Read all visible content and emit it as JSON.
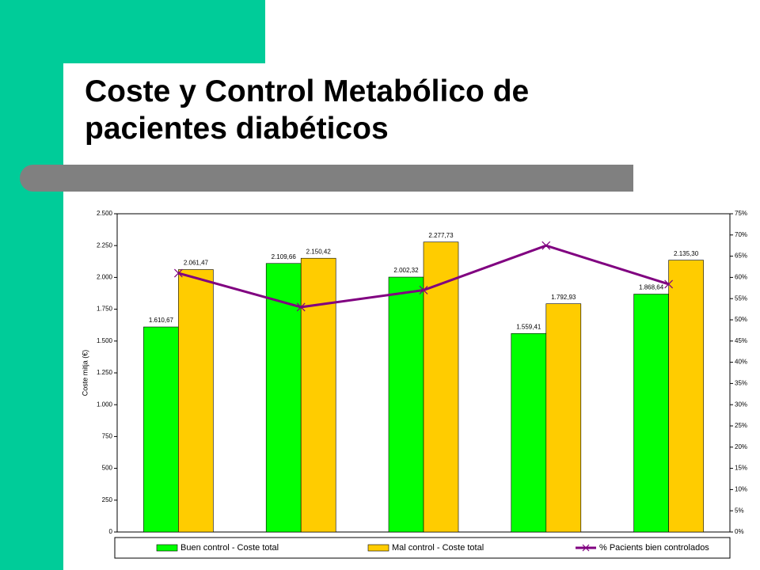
{
  "title": "Coste y Control Metabólico de pacientes diabéticos",
  "chart_data": {
    "type": "bar",
    "ylabel": "Coste mitja (€)",
    "categories": [
      null,
      null,
      null,
      null,
      null
    ],
    "series": [
      {
        "name": "Buen control - Coste total",
        "color": "#00ff00",
        "values": [
          1610.67,
          2109.66,
          2002.32,
          1559.41,
          1868.64
        ],
        "value_labels": [
          "1.610,67",
          "2.109,66",
          "2.002,32",
          "1.559,41",
          "1.868,64"
        ]
      },
      {
        "name": "Mal control - Coste total",
        "color": "#ffcc00",
        "values": [
          2061.47,
          2150.42,
          2277.73,
          1792.93,
          2135.3
        ],
        "value_labels": [
          "2.061,47",
          "2.150,42",
          "2.277,73",
          "1.792,93",
          "2.135,30"
        ]
      },
      {
        "name": "% Pacients bien controlados",
        "color": "#800080",
        "type": "line",
        "axis": "y2",
        "values": [
          61,
          53,
          57,
          67.5,
          58.4
        ]
      }
    ],
    "ylim": [
      0,
      2500
    ],
    "yticks": [
      0,
      250,
      500,
      750,
      {
        "value": 1000,
        "label": "1.000"
      },
      {
        "value": 1250,
        "label": "1.250"
      },
      {
        "value": 1500,
        "label": "1.500"
      },
      {
        "value": 1750,
        "label": "1.750"
      },
      {
        "value": 2000,
        "label": "2.000"
      },
      {
        "value": 2250,
        "label": "2.250"
      },
      {
        "value": 2500,
        "label": "2.500"
      }
    ],
    "y2lim": [
      0,
      75
    ],
    "y2ticks": [
      {
        "value": 0,
        "label": "0%"
      },
      {
        "value": 5,
        "label": "5%"
      },
      {
        "value": 10,
        "label": "10%"
      },
      {
        "value": 15,
        "label": "15%"
      },
      {
        "value": 20,
        "label": "20%"
      },
      {
        "value": 25,
        "label": "25%"
      },
      {
        "value": 30,
        "label": "30%"
      },
      {
        "value": 35,
        "label": "35%"
      },
      {
        "value": 40,
        "label": "40%"
      },
      {
        "value": 45,
        "label": "45%"
      },
      {
        "value": 50,
        "label": "50%"
      },
      {
        "value": 55,
        "label": "55%"
      },
      {
        "value": 60,
        "label": "60%"
      },
      {
        "value": 65,
        "label": "65%"
      },
      {
        "value": 70,
        "label": "70%"
      },
      {
        "value": 75,
        "label": "75%"
      }
    ],
    "grid": false,
    "legend": "bottom"
  }
}
